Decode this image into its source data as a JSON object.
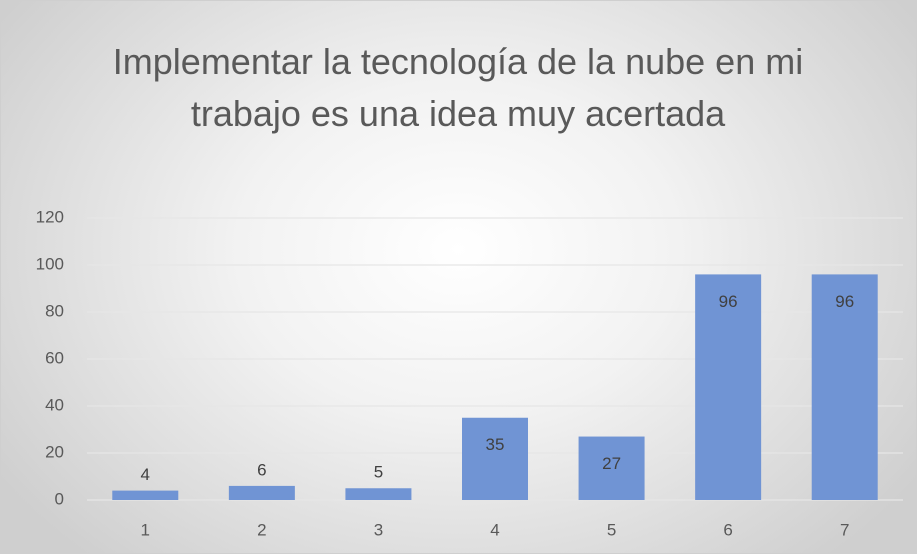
{
  "chart_data": {
    "type": "bar",
    "title": "Implementar la tecnología de la nube en mi trabajo es una idea muy acertada",
    "categories": [
      "1",
      "2",
      "3",
      "4",
      "5",
      "6",
      "7"
    ],
    "values": [
      4,
      6,
      5,
      35,
      27,
      96,
      96
    ],
    "color": "#7094d4",
    "ylim": [
      0,
      120
    ],
    "yticks": [
      0,
      20,
      40,
      60,
      80,
      100,
      120
    ],
    "grid": true
  }
}
